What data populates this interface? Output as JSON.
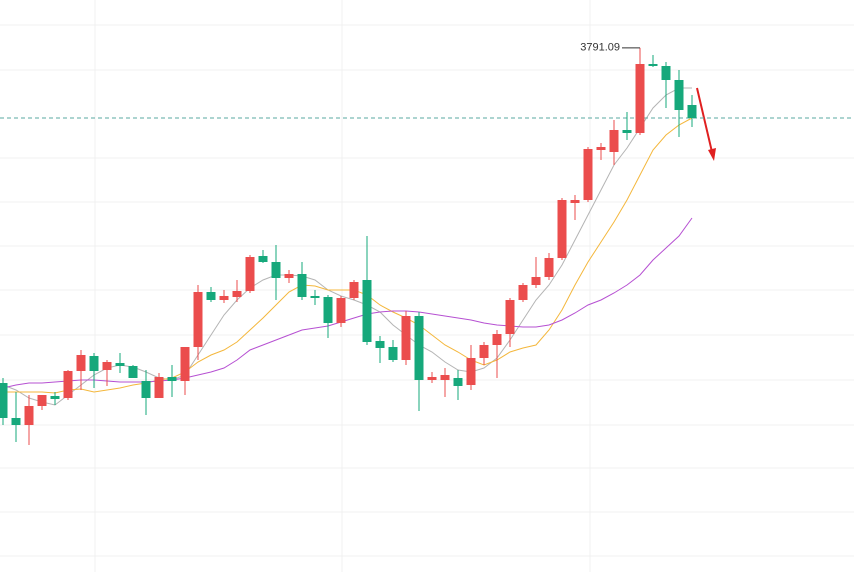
{
  "chart_data": {
    "type": "candlestick",
    "ylim": [
      3529,
      3815
    ],
    "up_color": "#eb4d4d",
    "down_color": "#16a87b",
    "open": [
      3623.5,
      3606,
      3602.5,
      3612,
      3617,
      3616,
      3629.5,
      3637,
      3630,
      3633.5,
      3632,
      3624.5,
      3616,
      3626.5,
      3624.5,
      3641.5,
      3669,
      3665,
      3666.5,
      3669.5,
      3687,
      3684,
      3676,
      3678,
      3667,
      3666.5,
      3653.5,
      3666,
      3675,
      3644.5,
      3641.5,
      3635,
      3657,
      3625,
      3625,
      3626,
      3622.5,
      3636,
      3642.5,
      3648,
      3665,
      3672.5,
      3676.5,
      3686,
      3713.5,
      3715,
      3740,
      3739,
      3750,
      3748.5,
      3783,
      3782,
      3775,
      3762.5
    ],
    "high": [
      3626,
      3619,
      3617.5,
      3617.5,
      3619,
      3630,
      3640,
      3638.5,
      3635,
      3638.5,
      3632.5,
      3630,
      3628.5,
      3632.5,
      3641.5,
      3672.5,
      3671.5,
      3670,
      3675,
      3687.5,
      3690,
      3692.5,
      3680,
      3684,
      3670,
      3667.5,
      3667,
      3675,
      3697,
      3647,
      3645,
      3659.5,
      3659,
      3629,
      3631,
      3630,
      3642.5,
      3644,
      3650,
      3666,
      3673.5,
      3686.5,
      3688.5,
      3716,
      3717.5,
      3741.5,
      3743.5,
      3755,
      3759,
      3791.09,
      3787.5,
      3784,
      3780,
      3767.5
    ],
    "low": [
      3602.5,
      3594,
      3592.5,
      3610,
      3612.5,
      3615,
      3620,
      3621,
      3622,
      3628.5,
      3626,
      3607.5,
      3616,
      3616.5,
      3617.5,
      3635,
      3664,
      3663.5,
      3664,
      3668.5,
      3683.5,
      3665,
      3673.5,
      3665,
      3662.5,
      3646,
      3651.5,
      3665,
      3642.5,
      3633.5,
      3634,
      3632.5,
      3609.5,
      3623.5,
      3616.5,
      3615,
      3620,
      3632.5,
      3626,
      3641.5,
      3664,
      3671,
      3675,
      3685,
      3705,
      3714,
      3735,
      3732.5,
      3745,
      3747.5,
      3781.5,
      3761,
      3746.5,
      3751.5
    ],
    "close": [
      3606,
      3602.5,
      3612,
      3617.5,
      3615.5,
      3629.5,
      3637.5,
      3629.5,
      3634,
      3632,
      3626,
      3616,
      3626.5,
      3624.5,
      3641.5,
      3669,
      3665,
      3667,
      3669.5,
      3686.5,
      3684,
      3676,
      3678,
      3666.5,
      3666,
      3653.5,
      3666,
      3674,
      3644,
      3641,
      3635,
      3657,
      3625,
      3626.5,
      3627.5,
      3622,
      3636,
      3642.5,
      3648,
      3665,
      3672.5,
      3676.5,
      3686,
      3715,
      3715,
      3740.5,
      3741.5,
      3750,
      3748.5,
      3783,
      3782,
      3775,
      3760,
      3756
    ],
    "lines": [
      {
        "color": "#b4b4b4",
        "values": [
          3622.5,
          3620,
          3616,
          3614,
          3612.5,
          3617.5,
          3622.5,
          3627.5,
          3631,
          3632.5,
          3631.5,
          3629,
          3626,
          3625,
          3627.5,
          3637.5,
          3647.5,
          3657.5,
          3665,
          3671,
          3675,
          3677.5,
          3677.5,
          3677,
          3675,
          3670,
          3667,
          3665,
          3662.5,
          3659,
          3652.5,
          3647.5,
          3642.5,
          3639,
          3634,
          3630,
          3629,
          3631,
          3636,
          3645,
          3655,
          3665,
          3672.5,
          3682.5,
          3695,
          3707.5,
          3720,
          3732.5,
          3741,
          3751,
          3761,
          3767.5,
          3771,
          3771
        ]
      },
      {
        "color": "#f4b73c",
        "values": [
          3619,
          3619,
          3619,
          3619,
          3618.5,
          3620,
          3620.5,
          3619,
          3620,
          3621,
          3622.5,
          3623.5,
          3625,
          3626,
          3629,
          3634,
          3637.5,
          3640,
          3644,
          3650,
          3656,
          3662.5,
          3669,
          3672.5,
          3672,
          3670,
          3670,
          3670,
          3667.5,
          3662.5,
          3659,
          3656,
          3652.5,
          3647.5,
          3642.5,
          3639,
          3635,
          3632.5,
          3635,
          3639,
          3641,
          3642.5,
          3650,
          3660,
          3672.5,
          3684,
          3694,
          3704,
          3715,
          3727.5,
          3740,
          3747.5,
          3752.5,
          3756
        ]
      },
      {
        "color": "#b650d2",
        "values": [
          3621,
          3622.5,
          3623.5,
          3623.5,
          3624,
          3624.5,
          3625,
          3625,
          3624.5,
          3624,
          3624,
          3624,
          3624.5,
          3625,
          3626,
          3627.5,
          3629,
          3631,
          3635,
          3640,
          3642.5,
          3645,
          3647.5,
          3650,
          3651,
          3652,
          3654,
          3656,
          3658,
          3659,
          3659.5,
          3659.5,
          3659,
          3658,
          3657,
          3656,
          3655,
          3653.5,
          3652.5,
          3652,
          3651.5,
          3651.5,
          3652.5,
          3655,
          3658.5,
          3662.5,
          3665,
          3668.5,
          3672.5,
          3677.5,
          3685,
          3691,
          3697,
          3706
        ]
      }
    ],
    "price_line_color": "#5aa9a0"
  }
}
